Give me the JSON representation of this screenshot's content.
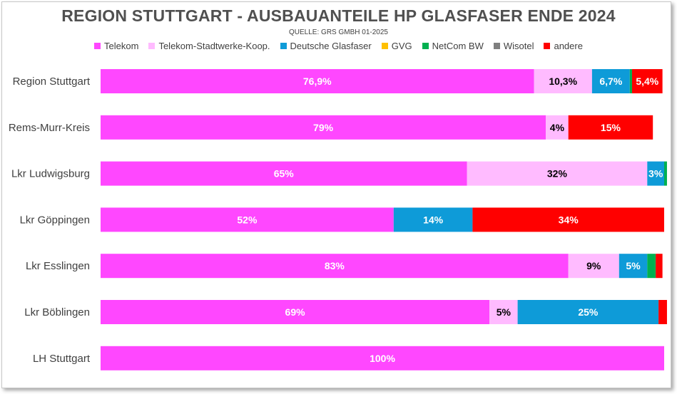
{
  "title": "REGION STUTTGART - AUSBAUANTEILE HP GLASFASER ENDE 2024",
  "subtitle": "QUELLE:  GRS GMBH  01-2025",
  "chart_data": {
    "type": "bar",
    "orientation": "horizontal",
    "stacked": true,
    "grid": false,
    "legend_position": "top",
    "categories": [
      "Region Stuttgart",
      "Rems-Murr-Kreis",
      "Lkr Ludwigsburg",
      "Lkr Göppingen",
      "Lkr Esslingen",
      "Lkr Böblingen",
      "LH Stuttgart"
    ],
    "series": [
      {
        "name": "Telekom",
        "color": "#ff47ff",
        "label_color": "#ffffff",
        "values": [
          76.9,
          79,
          65,
          52,
          83,
          69,
          100
        ],
        "labels": [
          "76,9%",
          "79%",
          "65%",
          "52%",
          "83%",
          "69%",
          "100%"
        ]
      },
      {
        "name": "Telekom-Stadtwerke-Koop.",
        "color": "#ffbbff",
        "label_color": "#000000",
        "values": [
          10.3,
          4,
          32,
          0,
          9,
          5,
          0
        ],
        "labels": [
          "10,3%",
          "4%",
          "32%",
          "",
          "9%",
          "5%",
          ""
        ]
      },
      {
        "name": "Deutsche Glasfaser",
        "color": "#0e9bd8",
        "label_color": "#ffffff",
        "values": [
          6.7,
          0,
          3,
          14,
          5,
          25,
          0
        ],
        "labels": [
          "6,7%",
          "",
          "3%",
          "14%",
          "5%",
          "25%",
          ""
        ]
      },
      {
        "name": "GVG",
        "color": "#ffc000",
        "label_color": "#000000",
        "values": [
          0,
          0,
          0,
          0,
          0,
          0,
          0
        ],
        "labels": [
          "",
          "",
          "",
          "",
          "",
          "",
          ""
        ]
      },
      {
        "name": "NetCom BW",
        "color": "#00b050",
        "label_color": "#ffffff",
        "values": [
          0.4,
          0,
          0.5,
          0,
          1.5,
          0,
          0
        ],
        "labels": [
          "",
          "",
          "",
          "",
          "",
          "",
          ""
        ]
      },
      {
        "name": "Wisotel",
        "color": "#7f7f7f",
        "label_color": "#ffffff",
        "values": [
          0,
          0,
          0,
          0,
          0,
          0,
          0
        ],
        "labels": [
          "",
          "",
          "",
          "",
          "",
          "",
          ""
        ]
      },
      {
        "name": "andere",
        "color": "#ff0000",
        "label_color": "#ffffff",
        "values": [
          5.4,
          15,
          0,
          34,
          1.2,
          1.5,
          0
        ],
        "labels": [
          "5,4%",
          "15%",
          "",
          "34%",
          "",
          "",
          ""
        ]
      }
    ],
    "xlim": [
      0,
      100
    ]
  }
}
